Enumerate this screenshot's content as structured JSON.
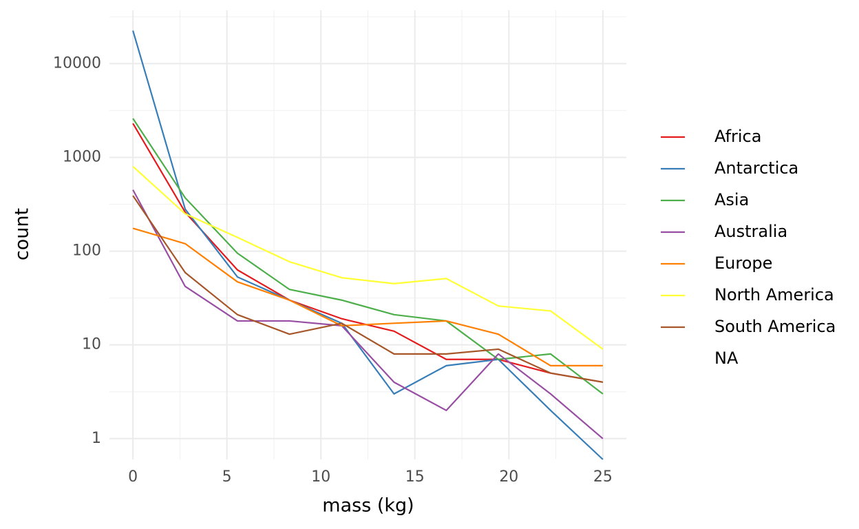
{
  "chart_data": {
    "type": "line",
    "x_label": "mass (kg)",
    "y_label": "count",
    "x": [
      0,
      2.78,
      5.56,
      8.33,
      11.11,
      13.89,
      16.67,
      19.44,
      22.22,
      25
    ],
    "series": [
      {
        "name": "Africa",
        "color": "#E41A1C",
        "values": [
          2300,
          260,
          63,
          30,
          19,
          14,
          7,
          7,
          5,
          4
        ]
      },
      {
        "name": "Antarctica",
        "color": "#377EB8",
        "values": [
          22500,
          280,
          53,
          30,
          17,
          3,
          6,
          7,
          2,
          0.6
        ]
      },
      {
        "name": "Asia",
        "color": "#4DAF4A",
        "values": [
          2600,
          370,
          95,
          39,
          30,
          21,
          18,
          7,
          8,
          3
        ]
      },
      {
        "name": "Australia",
        "color": "#984EA3",
        "values": [
          450,
          42,
          18,
          18,
          16,
          4,
          2,
          8,
          3,
          1
        ]
      },
      {
        "name": "Europe",
        "color": "#FF7F00",
        "values": [
          175,
          120,
          47,
          30,
          16,
          17,
          18,
          13,
          6,
          6
        ]
      },
      {
        "name": "North America",
        "color": "#FFFF33",
        "values": [
          800,
          250,
          140,
          77,
          52,
          45,
          51,
          26,
          23,
          9
        ]
      },
      {
        "name": "South America",
        "color": "#A65628",
        "values": [
          390,
          59,
          21,
          13,
          17,
          8,
          8,
          9,
          5,
          4
        ]
      },
      {
        "name": "NA",
        "values": [
          null,
          null,
          null,
          null,
          null,
          null,
          null,
          null,
          null,
          null
        ]
      }
    ],
    "xlim": [
      -1.25,
      26.25
    ],
    "xticks": [
      0,
      5,
      10,
      15,
      20,
      25
    ],
    "ylim": [
      0.6,
      37000
    ],
    "yticks": [
      1,
      10,
      100,
      1000,
      10000
    ],
    "log_y": true,
    "grid": true,
    "legend": "right"
  }
}
